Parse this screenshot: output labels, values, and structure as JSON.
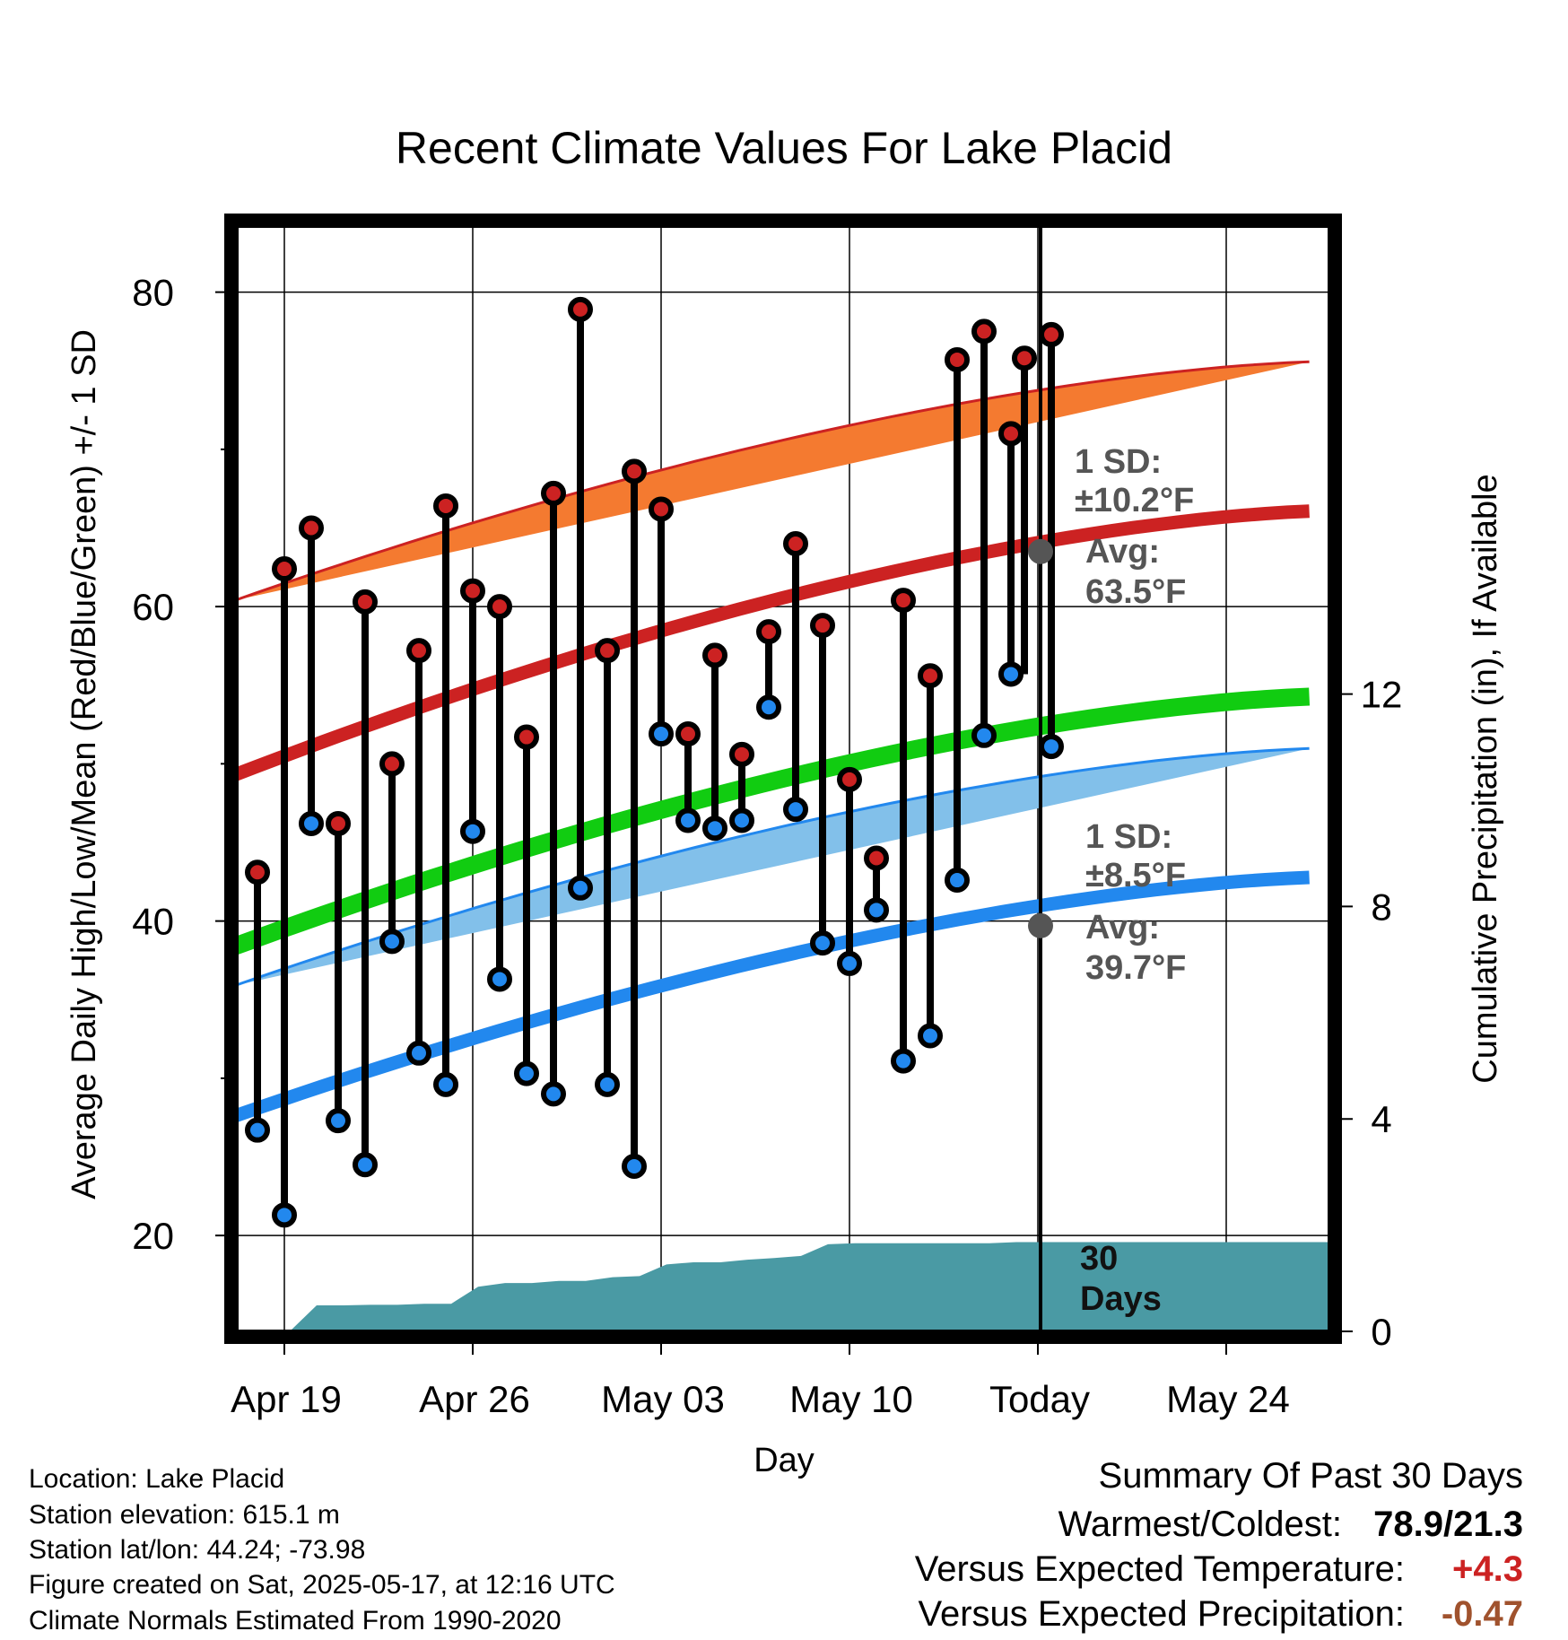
{
  "chart_data": {
    "type": "line",
    "title": "Recent Climate Values For Lake Placid",
    "xlabel": "Day",
    "ylabel": "Average Daily High/Low/Mean (Red/Blue/Green) +/- 1 SD",
    "ylabel_right": "Cumulative Precipitation (in), If Available",
    "x_ticks": [
      "Apr 19",
      "Apr 26",
      "May 03",
      "May 10",
      "Today",
      "May 24"
    ],
    "y_ticks": [
      20,
      40,
      60,
      80
    ],
    "y_ticks_right": [
      0,
      4,
      8,
      12
    ],
    "ylim": [
      13.9,
      84.2
    ],
    "ylim_right": [
      0,
      20
    ],
    "days": [
      "Apr 18",
      "Apr 19",
      "Apr 20",
      "Apr 21",
      "Apr 22",
      "Apr 23",
      "Apr 24",
      "Apr 25",
      "Apr 26",
      "Apr 27",
      "Apr 28",
      "Apr 29",
      "Apr 30",
      "May 01",
      "May 02",
      "May 03",
      "May 04",
      "May 05",
      "May 06",
      "May 07",
      "May 08",
      "May 09",
      "May 10",
      "May 11",
      "May 12",
      "May 13",
      "May 14",
      "May 15",
      "May 16"
    ],
    "series": [
      {
        "name": "High",
        "color": "#cc2222",
        "values": [
          43.1,
          62.4,
          65,
          46.2,
          60.3,
          50,
          57.2,
          66.4,
          61,
          60,
          51.7,
          67.2,
          78.9,
          57.2,
          68.6,
          66.2,
          51.9,
          56.9,
          50.6,
          58.4,
          64,
          58.8,
          49,
          44,
          60.4,
          55.6,
          75.7,
          77.5,
          71
        ]
      },
      {
        "name": "Low",
        "color": "#2288ee",
        "values": [
          26.7,
          21.3,
          46.2,
          27.3,
          24.5,
          38.7,
          31.6,
          29.6,
          45.7,
          36.3,
          30.3,
          29,
          42.1,
          29.6,
          24.4,
          51.9,
          46.4,
          45.9,
          46.4,
          53.6,
          47.1,
          38.6,
          37.3,
          40.7,
          31.1,
          32.7,
          42.6,
          51.8,
          55.7
        ]
      }
    ],
    "extra_points": {
      "High": [
        [
          28.5,
          75.8
        ],
        [
          29.5,
          77.3
        ]
      ],
      "Low": [
        [
          29.5,
          51.1
        ]
      ]
    },
    "normals": {
      "high_avg": [
        49.3,
        66.1
      ],
      "high_sd_band": [
        [
          40.8,
          57.1
        ],
        [
          60.4,
          75.6
        ]
      ],
      "mean_avg": [
        38.4,
        54.3
      ],
      "low_avg": [
        27.6,
        42.8
      ],
      "low_sd_band": [
        [
          20.1,
          35.6
        ],
        [
          35.9,
          51.0
        ]
      ]
    },
    "precip_cumulative": [
      0,
      0,
      0.49,
      0.49,
      0.5,
      0.5,
      0.52,
      0.52,
      0.84,
      0.91,
      0.91,
      0.95,
      0.95,
      1.02,
      1.04,
      1.26,
      1.3,
      1.3,
      1.35,
      1.38,
      1.42,
      1.64,
      1.66,
      1.66,
      1.66,
      1.66,
      1.66,
      1.66,
      1.68,
      1.68
    ],
    "today_annotations": {
      "high_sd_label": "1 SD:",
      "high_sd_value": "±10.2°F",
      "high_avg_label": "Avg:",
      "high_avg_value": "63.5°F",
      "low_sd_label": "1 SD:",
      "low_sd_value": "±8.5°F",
      "low_avg_label": "Avg:",
      "low_avg_value": "39.7°F",
      "days_label_1": "30",
      "days_label_2": "Days"
    },
    "grid": true,
    "legend": "none"
  },
  "footer": {
    "location": "Location: Lake Placid",
    "elevation": "Station elevation: 615.1 m",
    "latlon": "Station lat/lon: 44.24; -73.98",
    "created": "Figure created on Sat, 2025-05-17, at 12:16 UTC",
    "normals": "Climate Normals Estimated From 1990-2020"
  },
  "summary": {
    "heading": "Summary Of Past 30 Days",
    "warm_cold_label": "Warmest/Coldest:",
    "warm_cold_value": "78.9/21.3",
    "temp_label": "Versus Expected Temperature:",
    "temp_value": "+4.3",
    "precip_label": "Versus Expected Precipitation:",
    "precip_value": "-0.47"
  },
  "colors": {
    "high_band": "#f47a30",
    "high_line": "#cc2222",
    "low_band": "#82c0ea",
    "low_line": "#2288ee",
    "mean_line": "#11cc11",
    "precip": "#4a9aa4",
    "temp_value": "#cc2222",
    "precip_value": "#a0522d"
  }
}
